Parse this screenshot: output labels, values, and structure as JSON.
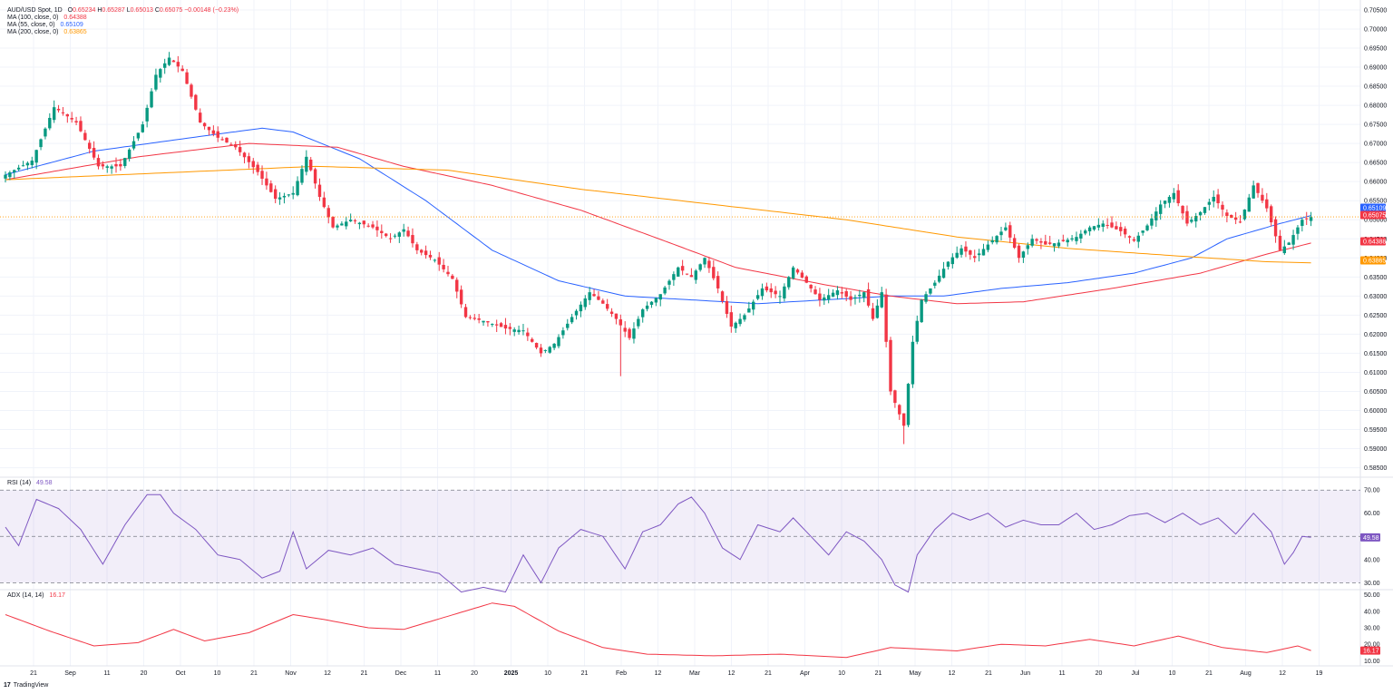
{
  "header": {
    "symbol_line": "AUD/USD Spot, 1D",
    "ohlc": {
      "open_label": "O",
      "open": "0.65234",
      "high_label": "H",
      "high": "0.65287",
      "low_label": "L",
      "low": "0.65013",
      "close_label": "C",
      "close": "0.65075",
      "change": "−0.00148 (−0.23%)"
    },
    "ma100": {
      "label": "MA (100, close, 0)",
      "value": "0.64388",
      "color": "#f23645"
    },
    "ma55": {
      "label": "MA (55, close, 0)",
      "value": "0.65109",
      "color": "#2962ff"
    },
    "ma200": {
      "label": "MA (200, close, 0)",
      "value": "0.63865",
      "color": "#ff9800"
    }
  },
  "rsi_legend": {
    "label": "RSI (14)",
    "value": "49.58",
    "color": "#7e57c2"
  },
  "adx_legend": {
    "label": "ADX (14, 14)",
    "value": "16.17",
    "color": "#f23645"
  },
  "brand": {
    "logo": "17",
    "name": "TradingView"
  },
  "colors": {
    "up": "#089981",
    "down": "#f23645",
    "grid": "#f0f3fa",
    "ma100": "#f23645",
    "ma55": "#2962ff",
    "ma200": "#ff9800",
    "rsi": "#7e57c2",
    "adx": "#f23645"
  },
  "chart_data": [
    {
      "type": "candlestick",
      "title": "AUD/USD Spot, 1D",
      "y_ticks": [
        "0.70500",
        "0.70000",
        "0.69500",
        "0.69000",
        "0.68500",
        "0.68000",
        "0.67500",
        "0.67000",
        "0.66500",
        "0.66000",
        "0.65500",
        "0.65000",
        "0.64500",
        "0.64000",
        "0.63500",
        "0.63000",
        "0.62500",
        "0.62000",
        "0.61500",
        "0.61000",
        "0.60500",
        "0.60000",
        "0.59500",
        "0.59000",
        "0.58500"
      ],
      "ylim": [
        0.583,
        0.7057
      ],
      "x_ticks": [
        "21",
        "Sep",
        "11",
        "20",
        "Oct",
        "10",
        "21",
        "Nov",
        "12",
        "21",
        "Dec",
        "11",
        "20",
        "2025",
        "10",
        "21",
        "Feb",
        "12",
        "Mar",
        "12",
        "21",
        "Apr",
        "10",
        "21",
        "May",
        "12",
        "21",
        "Jun",
        "11",
        "20",
        "Jul",
        "10",
        "21",
        "Aug",
        "12",
        "19"
      ],
      "last_price": 0.65075,
      "price_labels": [
        {
          "name": "ma55",
          "value": "0.65109"
        },
        {
          "name": "price",
          "value": "0.65075"
        },
        {
          "name": "ma100",
          "value": "0.64388"
        },
        {
          "name": "ma200",
          "value": "0.63865"
        }
      ],
      "anchors": [
        [
          0,
          0.6618
        ],
        [
          6,
          0.6655
        ],
        [
          11,
          0.6795
        ],
        [
          16,
          0.6755
        ],
        [
          21,
          0.664
        ],
        [
          26,
          0.664
        ],
        [
          31,
          0.675
        ],
        [
          34,
          0.688
        ],
        [
          37,
          0.6925
        ],
        [
          40,
          0.689
        ],
        [
          44,
          0.6755
        ],
        [
          48,
          0.6715
        ],
        [
          52,
          0.669
        ],
        [
          57,
          0.6625
        ],
        [
          61,
          0.6555
        ],
        [
          65,
          0.657
        ],
        [
          68,
          0.6665
        ],
        [
          71,
          0.656
        ],
        [
          74,
          0.648
        ],
        [
          78,
          0.65
        ],
        [
          83,
          0.648
        ],
        [
          87,
          0.645
        ],
        [
          90,
          0.6475
        ],
        [
          93,
          0.642
        ],
        [
          97,
          0.6395
        ],
        [
          101,
          0.6345
        ],
        [
          104,
          0.6245
        ],
        [
          108,
          0.6235
        ],
        [
          113,
          0.6215
        ],
        [
          117,
          0.621
        ],
        [
          121,
          0.615
        ],
        [
          124,
          0.6175
        ],
        [
          128,
          0.6245
        ],
        [
          132,
          0.631
        ],
        [
          135,
          0.628
        ],
        [
          138,
          0.624
        ],
        [
          141,
          0.619
        ],
        [
          144,
          0.6265
        ],
        [
          148,
          0.6305
        ],
        [
          152,
          0.6375
        ],
        [
          155,
          0.635
        ],
        [
          158,
          0.64
        ],
        [
          161,
          0.632
        ],
        [
          164,
          0.622
        ],
        [
          167,
          0.625
        ],
        [
          171,
          0.632
        ],
        [
          175,
          0.63
        ],
        [
          178,
          0.6375
        ],
        [
          181,
          0.6335
        ],
        [
          184,
          0.629
        ],
        [
          188,
          0.6315
        ],
        [
          191,
          0.629
        ],
        [
          194,
          0.631
        ],
        [
          196,
          0.624
        ],
        [
          198,
          0.631
        ],
        [
          200,
          0.605
        ],
        [
          203,
          0.596
        ],
        [
          205,
          0.618
        ],
        [
          207,
          0.629
        ],
        [
          210,
          0.6335
        ],
        [
          213,
          0.639
        ],
        [
          216,
          0.6425
        ],
        [
          219,
          0.64
        ],
        [
          222,
          0.6435
        ],
        [
          226,
          0.648
        ],
        [
          229,
          0.64
        ],
        [
          232,
          0.645
        ],
        [
          235,
          0.6435
        ],
        [
          238,
          0.644
        ],
        [
          242,
          0.6455
        ],
        [
          245,
          0.648
        ],
        [
          248,
          0.649
        ],
        [
          252,
          0.647
        ],
        [
          255,
          0.6445
        ],
        [
          258,
          0.6485
        ],
        [
          261,
          0.654
        ],
        [
          264,
          0.657
        ],
        [
          267,
          0.649
        ],
        [
          270,
          0.652
        ],
        [
          273,
          0.656
        ],
        [
          276,
          0.651
        ],
        [
          279,
          0.6495
        ],
        [
          282,
          0.659
        ],
        [
          285,
          0.653
        ],
        [
          288,
          0.642
        ],
        [
          290,
          0.644
        ],
        [
          293,
          0.65
        ],
        [
          295,
          0.6507
        ]
      ],
      "lows": [
        {
          "i": 139,
          "value": 0.609
        },
        {
          "i": 203,
          "value": 0.5912
        }
      ]
    },
    {
      "type": "line",
      "series": [
        {
          "name": "MA (55, close, 0)",
          "values_anchor": [
            [
              0,
              0.6618
            ],
            [
              20,
              0.668
            ],
            [
              45,
              0.672
            ],
            [
              58,
              0.674
            ],
            [
              65,
              0.673
            ],
            [
              80,
              0.666
            ],
            [
              95,
              0.655
            ],
            [
              110,
              0.642
            ],
            [
              125,
              0.634
            ],
            [
              140,
              0.63
            ],
            [
              155,
              0.629
            ],
            [
              170,
              0.628
            ],
            [
              185,
              0.629
            ],
            [
              200,
              0.63
            ],
            [
              212,
              0.63
            ],
            [
              225,
              0.632
            ],
            [
              240,
              0.6335
            ],
            [
              255,
              0.636
            ],
            [
              268,
              0.64
            ],
            [
              276,
              0.645
            ],
            [
              288,
              0.649
            ],
            [
              295,
              0.6511
            ]
          ]
        },
        {
          "name": "MA (100, close, 0)",
          "values_anchor": [
            [
              0,
              0.6605
            ],
            [
              30,
              0.6665
            ],
            [
              55,
              0.67
            ],
            [
              75,
              0.669
            ],
            [
              90,
              0.664
            ],
            [
              110,
              0.659
            ],
            [
              130,
              0.6525
            ],
            [
              150,
              0.644
            ],
            [
              165,
              0.6375
            ],
            [
              185,
              0.633
            ],
            [
              200,
              0.63
            ],
            [
              215,
              0.628
            ],
            [
              230,
              0.6285
            ],
            [
              250,
              0.632
            ],
            [
              270,
              0.636
            ],
            [
              285,
              0.641
            ],
            [
              295,
              0.6439
            ]
          ]
        },
        {
          "name": "MA (200, close, 0)",
          "values_anchor": [
            [
              0,
              0.6605
            ],
            [
              40,
              0.6625
            ],
            [
              70,
              0.664
            ],
            [
              100,
              0.663
            ],
            [
              130,
              0.658
            ],
            [
              160,
              0.654
            ],
            [
              190,
              0.65
            ],
            [
              215,
              0.6455
            ],
            [
              240,
              0.6425
            ],
            [
              265,
              0.6405
            ],
            [
              285,
              0.639
            ],
            [
              295,
              0.6387
            ]
          ]
        }
      ]
    },
    {
      "type": "line",
      "title": "RSI (14)",
      "y_ticks": [
        "70.00",
        "60.00",
        "50.00",
        "40.00",
        "30.00"
      ],
      "ylim": [
        27,
        74
      ],
      "band": [
        30,
        70
      ],
      "midline": 50,
      "last_value": "49.58",
      "values_anchor": [
        [
          0,
          54
        ],
        [
          3,
          46
        ],
        [
          7,
          66
        ],
        [
          12,
          62
        ],
        [
          17,
          53
        ],
        [
          22,
          38
        ],
        [
          27,
          55
        ],
        [
          32,
          68
        ],
        [
          35,
          68
        ],
        [
          38,
          60
        ],
        [
          43,
          53
        ],
        [
          48,
          42
        ],
        [
          53,
          40
        ],
        [
          58,
          32
        ],
        [
          62,
          35
        ],
        [
          65,
          52
        ],
        [
          68,
          36
        ],
        [
          73,
          44
        ],
        [
          78,
          42
        ],
        [
          83,
          45
        ],
        [
          88,
          38
        ],
        [
          93,
          36
        ],
        [
          98,
          34
        ],
        [
          103,
          26
        ],
        [
          108,
          28
        ],
        [
          113,
          26
        ],
        [
          117,
          42
        ],
        [
          121,
          30
        ],
        [
          125,
          45
        ],
        [
          130,
          53
        ],
        [
          135,
          50
        ],
        [
          140,
          36
        ],
        [
          144,
          52
        ],
        [
          148,
          55
        ],
        [
          152,
          64
        ],
        [
          155,
          67
        ],
        [
          158,
          60
        ],
        [
          162,
          45
        ],
        [
          166,
          40
        ],
        [
          170,
          55
        ],
        [
          175,
          52
        ],
        [
          178,
          58
        ],
        [
          182,
          50
        ],
        [
          186,
          42
        ],
        [
          190,
          52
        ],
        [
          194,
          48
        ],
        [
          198,
          40
        ],
        [
          201,
          29
        ],
        [
          204,
          26
        ],
        [
          206,
          42
        ],
        [
          210,
          53
        ],
        [
          214,
          60
        ],
        [
          218,
          57
        ],
        [
          222,
          60
        ],
        [
          226,
          54
        ],
        [
          230,
          57
        ],
        [
          234,
          55
        ],
        [
          238,
          55
        ],
        [
          242,
          60
        ],
        [
          246,
          53
        ],
        [
          250,
          55
        ],
        [
          254,
          59
        ],
        [
          258,
          60
        ],
        [
          262,
          56
        ],
        [
          266,
          60
        ],
        [
          270,
          55
        ],
        [
          274,
          58
        ],
        [
          278,
          51
        ],
        [
          282,
          60
        ],
        [
          286,
          52
        ],
        [
          289,
          38
        ],
        [
          291,
          43
        ],
        [
          293,
          50
        ],
        [
          295,
          49.58
        ]
      ]
    },
    {
      "type": "line",
      "title": "ADX (14, 14)",
      "y_ticks": [
        "50.00",
        "40.00",
        "30.00",
        "20.00",
        "10.00"
      ],
      "ylim": [
        8,
        52
      ],
      "last_value": "16.17",
      "values_anchor": [
        [
          0,
          38
        ],
        [
          10,
          28
        ],
        [
          20,
          19
        ],
        [
          30,
          21
        ],
        [
          38,
          29
        ],
        [
          45,
          22
        ],
        [
          55,
          27
        ],
        [
          65,
          38
        ],
        [
          72,
          35
        ],
        [
          82,
          30
        ],
        [
          90,
          29
        ],
        [
          100,
          37
        ],
        [
          110,
          45
        ],
        [
          115,
          43
        ],
        [
          125,
          28
        ],
        [
          135,
          18
        ],
        [
          145,
          14
        ],
        [
          160,
          13
        ],
        [
          175,
          14
        ],
        [
          190,
          12
        ],
        [
          200,
          18
        ],
        [
          215,
          16
        ],
        [
          225,
          20
        ],
        [
          235,
          19
        ],
        [
          245,
          23
        ],
        [
          255,
          19
        ],
        [
          265,
          25
        ],
        [
          275,
          18
        ],
        [
          285,
          15
        ],
        [
          292,
          19
        ],
        [
          295,
          16.17
        ]
      ]
    }
  ]
}
